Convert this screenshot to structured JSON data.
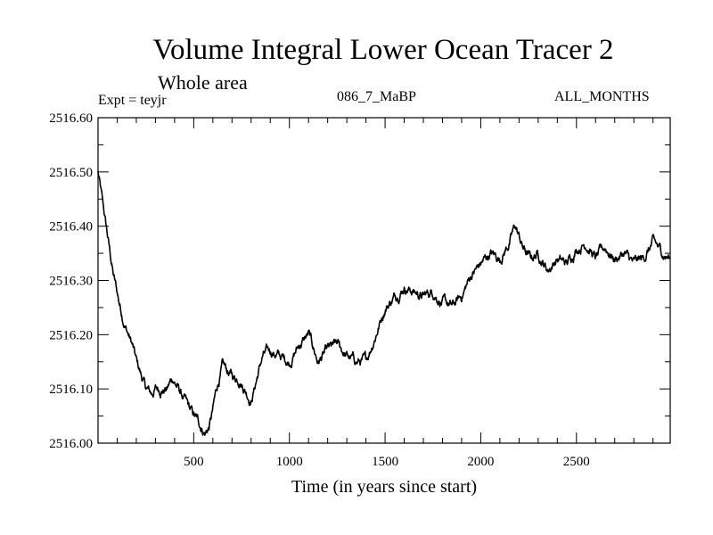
{
  "header": {
    "title": "Volume Integral Lower Ocean Tracer 2",
    "subtitle": "Whole area",
    "experiment": "Expt = teyjr",
    "period": "086_7_MaBP",
    "months": "ALL_MONTHS"
  },
  "chart_data": {
    "type": "line",
    "title": "Volume Integral Lower Ocean Tracer 2",
    "xlabel": "Time (in years since start)",
    "ylabel": "",
    "xlim": [
      0,
      2990
    ],
    "ylim": [
      2516.0,
      2516.6
    ],
    "xticks": [
      500,
      1000,
      1500,
      2000,
      2500
    ],
    "xtick_labels": [
      "500",
      "1000",
      "1500",
      "2000",
      "2500"
    ],
    "yticks": [
      2516.0,
      2516.1,
      2516.2,
      2516.3,
      2516.4,
      2516.5,
      2516.6
    ],
    "ytick_labels": [
      "2516.00",
      "2516.10",
      "2516.20",
      "2516.30",
      "2516.40",
      "2516.50",
      "2516.60"
    ],
    "series": [
      {
        "name": "Lower Ocean Tracer 2",
        "color": "#000000",
        "x": [
          0,
          20,
          50,
          80,
          110,
          140,
          160,
          180,
          200,
          220,
          250,
          280,
          300,
          330,
          360,
          390,
          420,
          450,
          480,
          500,
          520,
          540,
          560,
          580,
          600,
          620,
          650,
          680,
          710,
          740,
          770,
          800,
          830,
          860,
          900,
          950,
          1000,
          1050,
          1100,
          1150,
          1200,
          1250,
          1300,
          1350,
          1400,
          1450,
          1500,
          1550,
          1600,
          1650,
          1700,
          1750,
          1800,
          1850,
          1900,
          1950,
          2000,
          2050,
          2100,
          2150,
          2180,
          2220,
          2260,
          2300,
          2350,
          2400,
          2450,
          2500,
          2550,
          2600,
          2650,
          2700,
          2750,
          2800,
          2850,
          2900,
          2950,
          2990
        ],
        "y": [
          2516.5,
          2516.45,
          2516.38,
          2516.31,
          2516.26,
          2516.22,
          2516.2,
          2516.18,
          2516.15,
          2516.13,
          2516.1,
          2516.09,
          2516.1,
          2516.1,
          2516.1,
          2516.12,
          2516.1,
          2516.08,
          2516.06,
          2516.05,
          2516.04,
          2516.03,
          2516.02,
          2516.03,
          2516.06,
          2516.1,
          2516.14,
          2516.13,
          2516.12,
          2516.12,
          2516.1,
          2516.08,
          2516.12,
          2516.16,
          2516.17,
          2516.16,
          2516.15,
          2516.18,
          2516.2,
          2516.15,
          2516.17,
          2516.18,
          2516.16,
          2516.15,
          2516.15,
          2516.2,
          2516.25,
          2516.27,
          2516.29,
          2516.28,
          2516.27,
          2516.28,
          2516.26,
          2516.25,
          2516.27,
          2516.31,
          2516.33,
          2516.35,
          2516.34,
          2516.37,
          2516.4,
          2516.36,
          2516.34,
          2516.35,
          2516.32,
          2516.34,
          2516.33,
          2516.36,
          2516.37,
          2516.34,
          2516.36,
          2516.34,
          2516.35,
          2516.33,
          2516.34,
          2516.37,
          2516.35,
          2516.34
        ]
      }
    ]
  }
}
